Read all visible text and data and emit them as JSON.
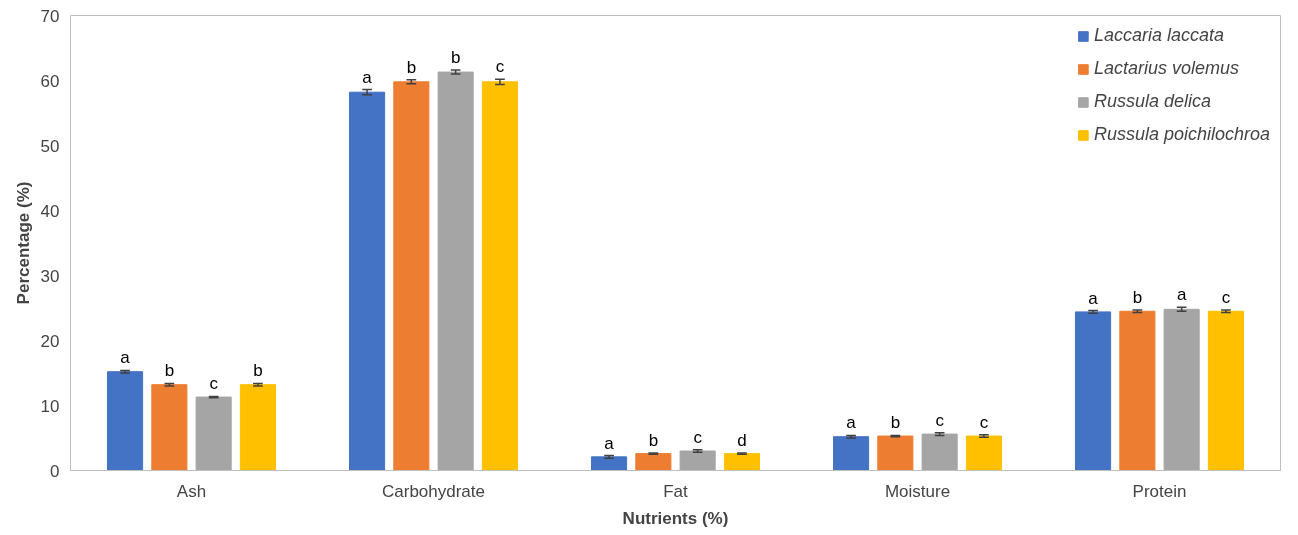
{
  "chart_data": {
    "type": "bar",
    "xlabel": "Nutrients (%)",
    "ylabel": "Percentage (%)",
    "categories": [
      "Ash",
      "Carbohydrate",
      "Fat",
      "Moisture",
      "Protein"
    ],
    "series": [
      {
        "name": "Laccaria laccata",
        "color": "#4472c4",
        "values": [
          15.2,
          58.2,
          2.1,
          5.2,
          24.4
        ],
        "errors": [
          0.2,
          0.4,
          0.2,
          0.2,
          0.2
        ],
        "value_labels": [
          "a",
          "a",
          "a",
          "a",
          "a"
        ]
      },
      {
        "name": "Lactarius volemus",
        "color": "#ed7d31",
        "values": [
          13.2,
          59.8,
          2.6,
          5.3,
          24.5
        ],
        "errors": [
          0.2,
          0.3,
          0.1,
          0.1,
          0.2
        ],
        "value_labels": [
          "b",
          "b",
          "b",
          "b",
          "b"
        ]
      },
      {
        "name": "Russula delica",
        "color": "#a5a5a5",
        "values": [
          11.3,
          61.3,
          3.0,
          5.6,
          24.8
        ],
        "errors": [
          0.1,
          0.3,
          0.2,
          0.2,
          0.3
        ],
        "value_labels": [
          "c",
          "b",
          "c",
          "c",
          "a"
        ]
      },
      {
        "name": "Russula poichilochroa",
        "color": "#ffc000",
        "values": [
          13.2,
          59.8,
          2.6,
          5.3,
          24.5
        ],
        "errors": [
          0.2,
          0.4,
          0.1,
          0.2,
          0.2
        ],
        "value_labels": [
          "b",
          "c",
          "d",
          "c",
          "c"
        ]
      }
    ],
    "ylim": [
      0,
      70
    ],
    "yticks": [
      0,
      10,
      20,
      30,
      40,
      50,
      60,
      70
    ],
    "grid": false,
    "legend": "top right"
  }
}
